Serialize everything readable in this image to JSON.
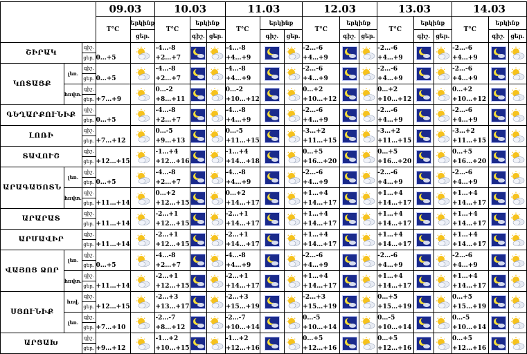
{
  "dates": [
    "09.03",
    "10.03",
    "11.03",
    "12.03",
    "13.03",
    "14.03"
  ],
  "headers": {
    "temp": "T°C",
    "sky": "երկինք",
    "night": "գիշ.",
    "day": "ցեր.",
    "night_abbr": "գիշ.",
    "day_abbr": "ցեր."
  },
  "rows": [
    {
      "region": "ՇԻՐԱԿ",
      "sub": "",
      "d0": "0…+5",
      "t": [
        [
          "-4…-8",
          "+2…+7"
        ],
        [
          "-4…-8",
          "+4…+9"
        ],
        [
          "-2…-6",
          "+4…+9"
        ],
        [
          "-2…-6",
          "+4…+9"
        ],
        [
          "-2…-6",
          "+4…+9"
        ]
      ]
    },
    {
      "region": "ԿՈՏԱՅՔ",
      "sub": "լեռ.",
      "d0": "0…+5",
      "t": [
        [
          "-4…-8",
          "+2…+7"
        ],
        [
          "-4…-8",
          "+4…+9"
        ],
        [
          "-2…-6",
          "+4…+9"
        ],
        [
          "-2…-6",
          "+4…+9"
        ],
        [
          "-2…-6",
          "+4…+9"
        ]
      ]
    },
    {
      "region": "",
      "sub": "հովտ.",
      "d0": "+7…+9",
      "t": [
        [
          "0…-2",
          "+8…+11"
        ],
        [
          "0…-2",
          "+10…+12"
        ],
        [
          "0…+2",
          "+10…+12"
        ],
        [
          "0…+2",
          "+10…+12"
        ],
        [
          "0…+2",
          "+10…+12"
        ]
      ]
    },
    {
      "region": "ԳԵՂԱՐՔՈՒՆԻՔ",
      "sub": "",
      "d0": "0…+5",
      "t": [
        [
          "-4…-8",
          "+2…+7"
        ],
        [
          "-4…-8",
          "+4…+9"
        ],
        [
          "-2…-6",
          "+4…+9"
        ],
        [
          "-2…-6",
          "+4…+9"
        ],
        [
          "-2…-6",
          "+4…+9"
        ]
      ]
    },
    {
      "region": "ԼՈՌԻ",
      "sub": "",
      "d0": "+7…+12",
      "t": [
        [
          "0…-5",
          "+9…+13"
        ],
        [
          "0…-5",
          "+11…+15"
        ],
        [
          "-3…+2",
          "+11…+15"
        ],
        [
          "-3…+2",
          "+11…+15"
        ],
        [
          "-3…+2",
          "+11…+15"
        ]
      ]
    },
    {
      "region": "ՏԱՎՈՒՇ",
      "sub": "",
      "d0": "+12…+15",
      "t": [
        [
          "-1…+4",
          "+12…+16"
        ],
        [
          "-1…+4",
          "+14…+18"
        ],
        [
          "0…+5",
          "+16…+20"
        ],
        [
          "0…+5",
          "+16…+20"
        ],
        [
          "0…+5",
          "+16…+20"
        ]
      ]
    },
    {
      "region": "ԱՐԱԳԱԾՈՏՆ",
      "sub": "լեռ.",
      "d0": "0…+5",
      "t": [
        [
          "-4…-8",
          "+2…+7"
        ],
        [
          "-4…-8",
          "+4…+9"
        ],
        [
          "-2…-6",
          "+4…+9"
        ],
        [
          "-2…-6",
          "+4…+9"
        ],
        [
          "-2…-6",
          "+4…+9"
        ]
      ]
    },
    {
      "region": "",
      "sub": "հովտ.",
      "d0": "+11…+14",
      "t": [
        [
          "0…+2",
          "+12…+15"
        ],
        [
          "0…+2",
          "+14…+17"
        ],
        [
          "+1…+4",
          "+14…+17"
        ],
        [
          "+1…+4",
          "+14…+17"
        ],
        [
          "+1…+4",
          "+14…+17"
        ]
      ]
    },
    {
      "region": "ԱՐԱՐԱՏ",
      "sub": "",
      "d0": "+11…+14",
      "t": [
        [
          "-2…+1",
          "+12…+15"
        ],
        [
          "-2…+1",
          "+14…+17"
        ],
        [
          "+1…+4",
          "+14…+17"
        ],
        [
          "+1…+4",
          "+14…+17"
        ],
        [
          "+1…+4",
          "+14…+17"
        ]
      ]
    },
    {
      "region": "ԱՐՄԱՎԻՐ",
      "sub": "",
      "d0": "+11…+14",
      "t": [
        [
          "-2…+1",
          "+12…+15"
        ],
        [
          "-2…+1",
          "+14…+17"
        ],
        [
          "+1…+4",
          "+14…+17"
        ],
        [
          "+1…+4",
          "+14…+17"
        ],
        [
          "+1…+4",
          "+14…+17"
        ]
      ]
    },
    {
      "region": "ՎԱՅՈՑ ՁՈՐ",
      "sub": "լեռ.",
      "d0": "0…+5",
      "t": [
        [
          "-4…-8",
          "+2…+7"
        ],
        [
          "-4…-8",
          "+4…+9"
        ],
        [
          "-2…-6",
          "+4…+9"
        ],
        [
          "-2…-6",
          "+4…+9"
        ],
        [
          "-2…-6",
          "+4…+9"
        ]
      ]
    },
    {
      "region": "",
      "sub": "հովտ.",
      "d0": "+11…+14",
      "t": [
        [
          "-2…+1",
          "+12…+15"
        ],
        [
          "-2…+1",
          "+14…+17"
        ],
        [
          "+1…+4",
          "+14…+17"
        ],
        [
          "+1…+4",
          "+14…+17"
        ],
        [
          "+1…+4",
          "+14…+17"
        ]
      ]
    },
    {
      "region": "ՍՅՈՒՆԻՔ",
      "sub": "հով.",
      "d0": "+12…+15",
      "t": [
        [
          "-2…+3",
          "+13…+17"
        ],
        [
          "-2…+3",
          "+15…+19"
        ],
        [
          "-2…+3",
          "+15…+19"
        ],
        [
          "0…+5",
          "+15…+19"
        ],
        [
          "0…+5",
          "+15…+19"
        ]
      ]
    },
    {
      "region": "",
      "sub": "լեռ.",
      "d0": "+7…+10",
      "t": [
        [
          "-2…-7",
          "+8…+12"
        ],
        [
          "-2…-7",
          "+10…+14"
        ],
        [
          "0…-5",
          "+10…+14"
        ],
        [
          "0…-5",
          "+10…+14"
        ],
        [
          "0…-5",
          "+10…+14"
        ]
      ]
    },
    {
      "region": "ԱՐՑԱԽ",
      "sub": "",
      "d0": "+9…+12",
      "t": [
        [
          "-1…+2",
          "+10…+15"
        ],
        [
          "-1…+2",
          "+12…+16"
        ],
        [
          "0…+5",
          "+12…+16"
        ],
        [
          "0…+5",
          "+12…+16"
        ],
        [
          "0…+5",
          "+12…+16"
        ]
      ]
    }
  ]
}
